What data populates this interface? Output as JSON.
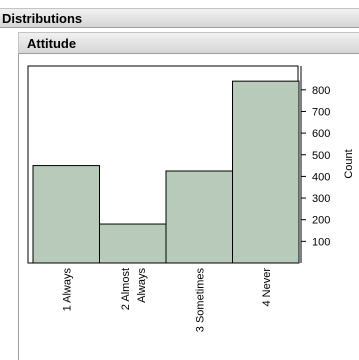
{
  "header": {
    "title": "Distributions"
  },
  "section": {
    "title": "Attitude"
  },
  "chart_data": {
    "type": "bar",
    "categories": [
      "1 Always",
      "2 Almost Always",
      "3 Sometimes",
      "4 Never"
    ],
    "category_lines": [
      [
        "1 Always"
      ],
      [
        "2 Almost",
        "Always"
      ],
      [
        "3 Sometimes"
      ],
      [
        "4 Never"
      ]
    ],
    "values": [
      450,
      180,
      425,
      840
    ],
    "ylabel": "Count",
    "yticks": [
      100,
      200,
      300,
      400,
      500,
      600,
      700,
      800
    ],
    "ylim": [
      0,
      910
    ],
    "bar_color": "#b8cbbb"
  }
}
